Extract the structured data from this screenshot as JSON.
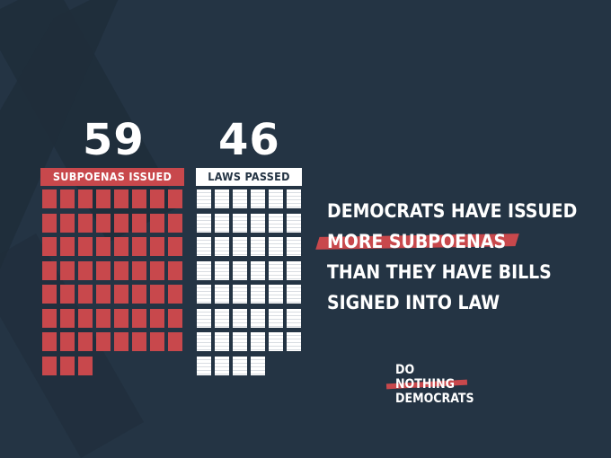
{
  "left_stat": {
    "number": "59",
    "label": "SUBPOENAS ISSUED",
    "count": 59
  },
  "right_stat": {
    "number": "46",
    "label": "LAWS PASSED",
    "count": 46
  },
  "headline": {
    "line1": "DEMOCRATS HAVE ISSUED",
    "line2": "MORE SUBPOENAS",
    "line3": "THAN THEY HAVE BILLS",
    "line4": "SIGNED INTO LAW"
  },
  "logo": {
    "line1": "DO",
    "line2": "NOTHING",
    "line3": "DEMOCRATS"
  },
  "colors": {
    "background": "#243444",
    "accent": "#c8484c",
    "white": "#ffffff"
  },
  "icons": {
    "subpoena": "document-icon",
    "law": "document-icon"
  }
}
